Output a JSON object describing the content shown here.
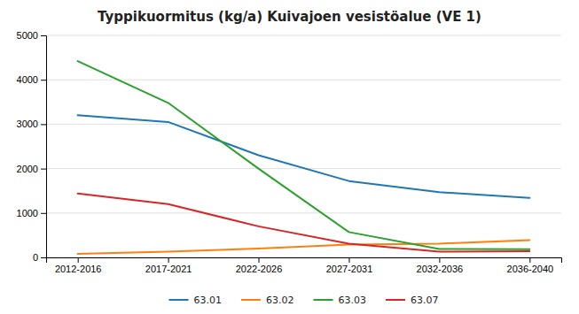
{
  "chart_data": {
    "type": "line",
    "title": "Typpikuormitus (kg/a) Kuivajoen vesistöalue (VE 1)",
    "categories": [
      "2012-2016",
      "2017-2021",
      "2022-2026",
      "2027-2031",
      "2032-2036",
      "2036-2040"
    ],
    "series": [
      {
        "name": "63.01",
        "values": [
          3200,
          3050,
          2300,
          1720,
          1470,
          1340
        ]
      },
      {
        "name": "63.02",
        "values": [
          80,
          130,
          200,
          290,
          310,
          390
        ]
      },
      {
        "name": "63.03",
        "values": [
          4420,
          3480,
          2000,
          570,
          190,
          185
        ]
      },
      {
        "name": "63.07",
        "values": [
          1440,
          1200,
          700,
          310,
          130,
          140
        ]
      }
    ],
    "ylim": [
      0,
      5000
    ],
    "yticks": [
      0,
      1000,
      2000,
      3000,
      4000,
      5000
    ],
    "grid": true,
    "legend": "bottom"
  }
}
